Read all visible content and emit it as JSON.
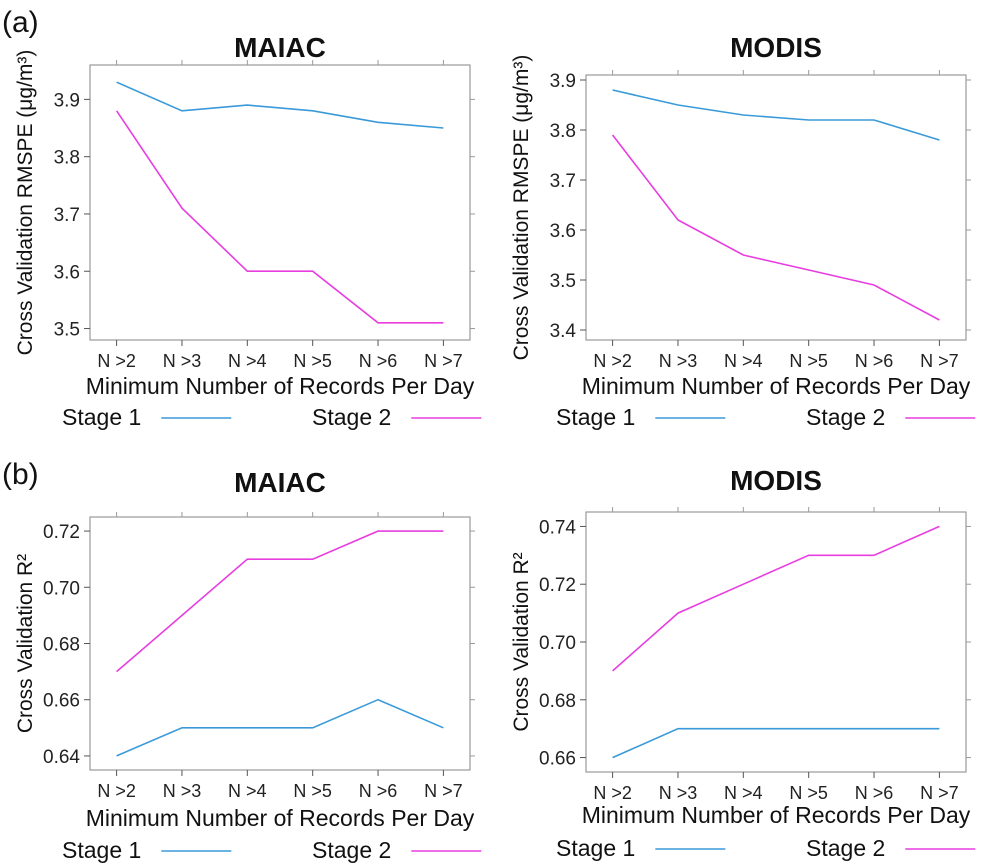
{
  "panel_labels": [
    "(a)",
    "(b)"
  ],
  "chart_data": [
    {
      "type": "line",
      "title": "MAIAC",
      "xlabel": "Minimum Number of Records Per Day",
      "ylabel": "Cross Validation RMSPE (μg/m³)",
      "categories": [
        "N >2",
        "N >3",
        "N >4",
        "N >5",
        "N >6",
        "N >7"
      ],
      "yticks": [
        "3.5",
        "3.6",
        "3.7",
        "3.8",
        "3.9"
      ],
      "ylim": [
        3.48,
        3.96
      ],
      "series": [
        {
          "name": "Stage 1",
          "color": "#3a9ad9",
          "values": [
            3.93,
            3.88,
            3.89,
            3.88,
            3.86,
            3.85
          ]
        },
        {
          "name": "Stage 2",
          "color": "#e83ee0",
          "values": [
            3.88,
            3.71,
            3.6,
            3.6,
            3.51,
            3.51
          ]
        }
      ],
      "grid": false,
      "legend": "bottom"
    },
    {
      "type": "line",
      "title": "MODIS",
      "xlabel": "Minimum Number of Records Per Day",
      "ylabel": "Cross Validation RMSPE (μg/m³)",
      "categories": [
        "N >2",
        "N >3",
        "N >4",
        "N >5",
        "N >6",
        "N >7"
      ],
      "yticks": [
        "3.4",
        "3.5",
        "3.6",
        "3.7",
        "3.8",
        "3.9"
      ],
      "ylim": [
        3.38,
        3.91
      ],
      "series": [
        {
          "name": "Stage 1",
          "color": "#3a9ad9",
          "values": [
            3.88,
            3.85,
            3.83,
            3.82,
            3.82,
            3.78
          ]
        },
        {
          "name": "Stage 2",
          "color": "#e83ee0",
          "values": [
            3.79,
            3.62,
            3.55,
            3.52,
            3.49,
            3.42
          ]
        }
      ],
      "grid": false,
      "legend": "bottom"
    },
    {
      "type": "line",
      "title": "MAIAC",
      "xlabel": "Minimum Number of Records Per Day",
      "ylabel": "Cross Validation R²",
      "categories": [
        "N >2",
        "N >3",
        "N >4",
        "N >5",
        "N >6",
        "N >7"
      ],
      "yticks": [
        "0.64",
        "0.66",
        "0.68",
        "0.70",
        "0.72"
      ],
      "ylim": [
        0.635,
        0.725
      ],
      "series": [
        {
          "name": "Stage 1",
          "color": "#3a9ad9",
          "values": [
            0.64,
            0.65,
            0.65,
            0.65,
            0.66,
            0.65
          ]
        },
        {
          "name": "Stage 2",
          "color": "#e83ee0",
          "values": [
            0.67,
            0.69,
            0.71,
            0.71,
            0.72,
            0.72
          ]
        }
      ],
      "grid": false,
      "legend": "bottom"
    },
    {
      "type": "line",
      "title": "MODIS",
      "xlabel": "Minimum Number of Records Per Day",
      "ylabel": "Cross Validation R²",
      "categories": [
        "N >2",
        "N >3",
        "N >4",
        "N >5",
        "N >6",
        "N >7"
      ],
      "yticks": [
        "0.66",
        "0.68",
        "0.70",
        "0.72",
        "0.74"
      ],
      "ylim": [
        0.655,
        0.745
      ],
      "series": [
        {
          "name": "Stage 1",
          "color": "#3a9ad9",
          "values": [
            0.66,
            0.67,
            0.67,
            0.67,
            0.67,
            0.67
          ]
        },
        {
          "name": "Stage 2",
          "color": "#e83ee0",
          "values": [
            0.69,
            0.71,
            0.72,
            0.73,
            0.73,
            0.74
          ]
        }
      ],
      "grid": false,
      "legend": "bottom"
    }
  ]
}
